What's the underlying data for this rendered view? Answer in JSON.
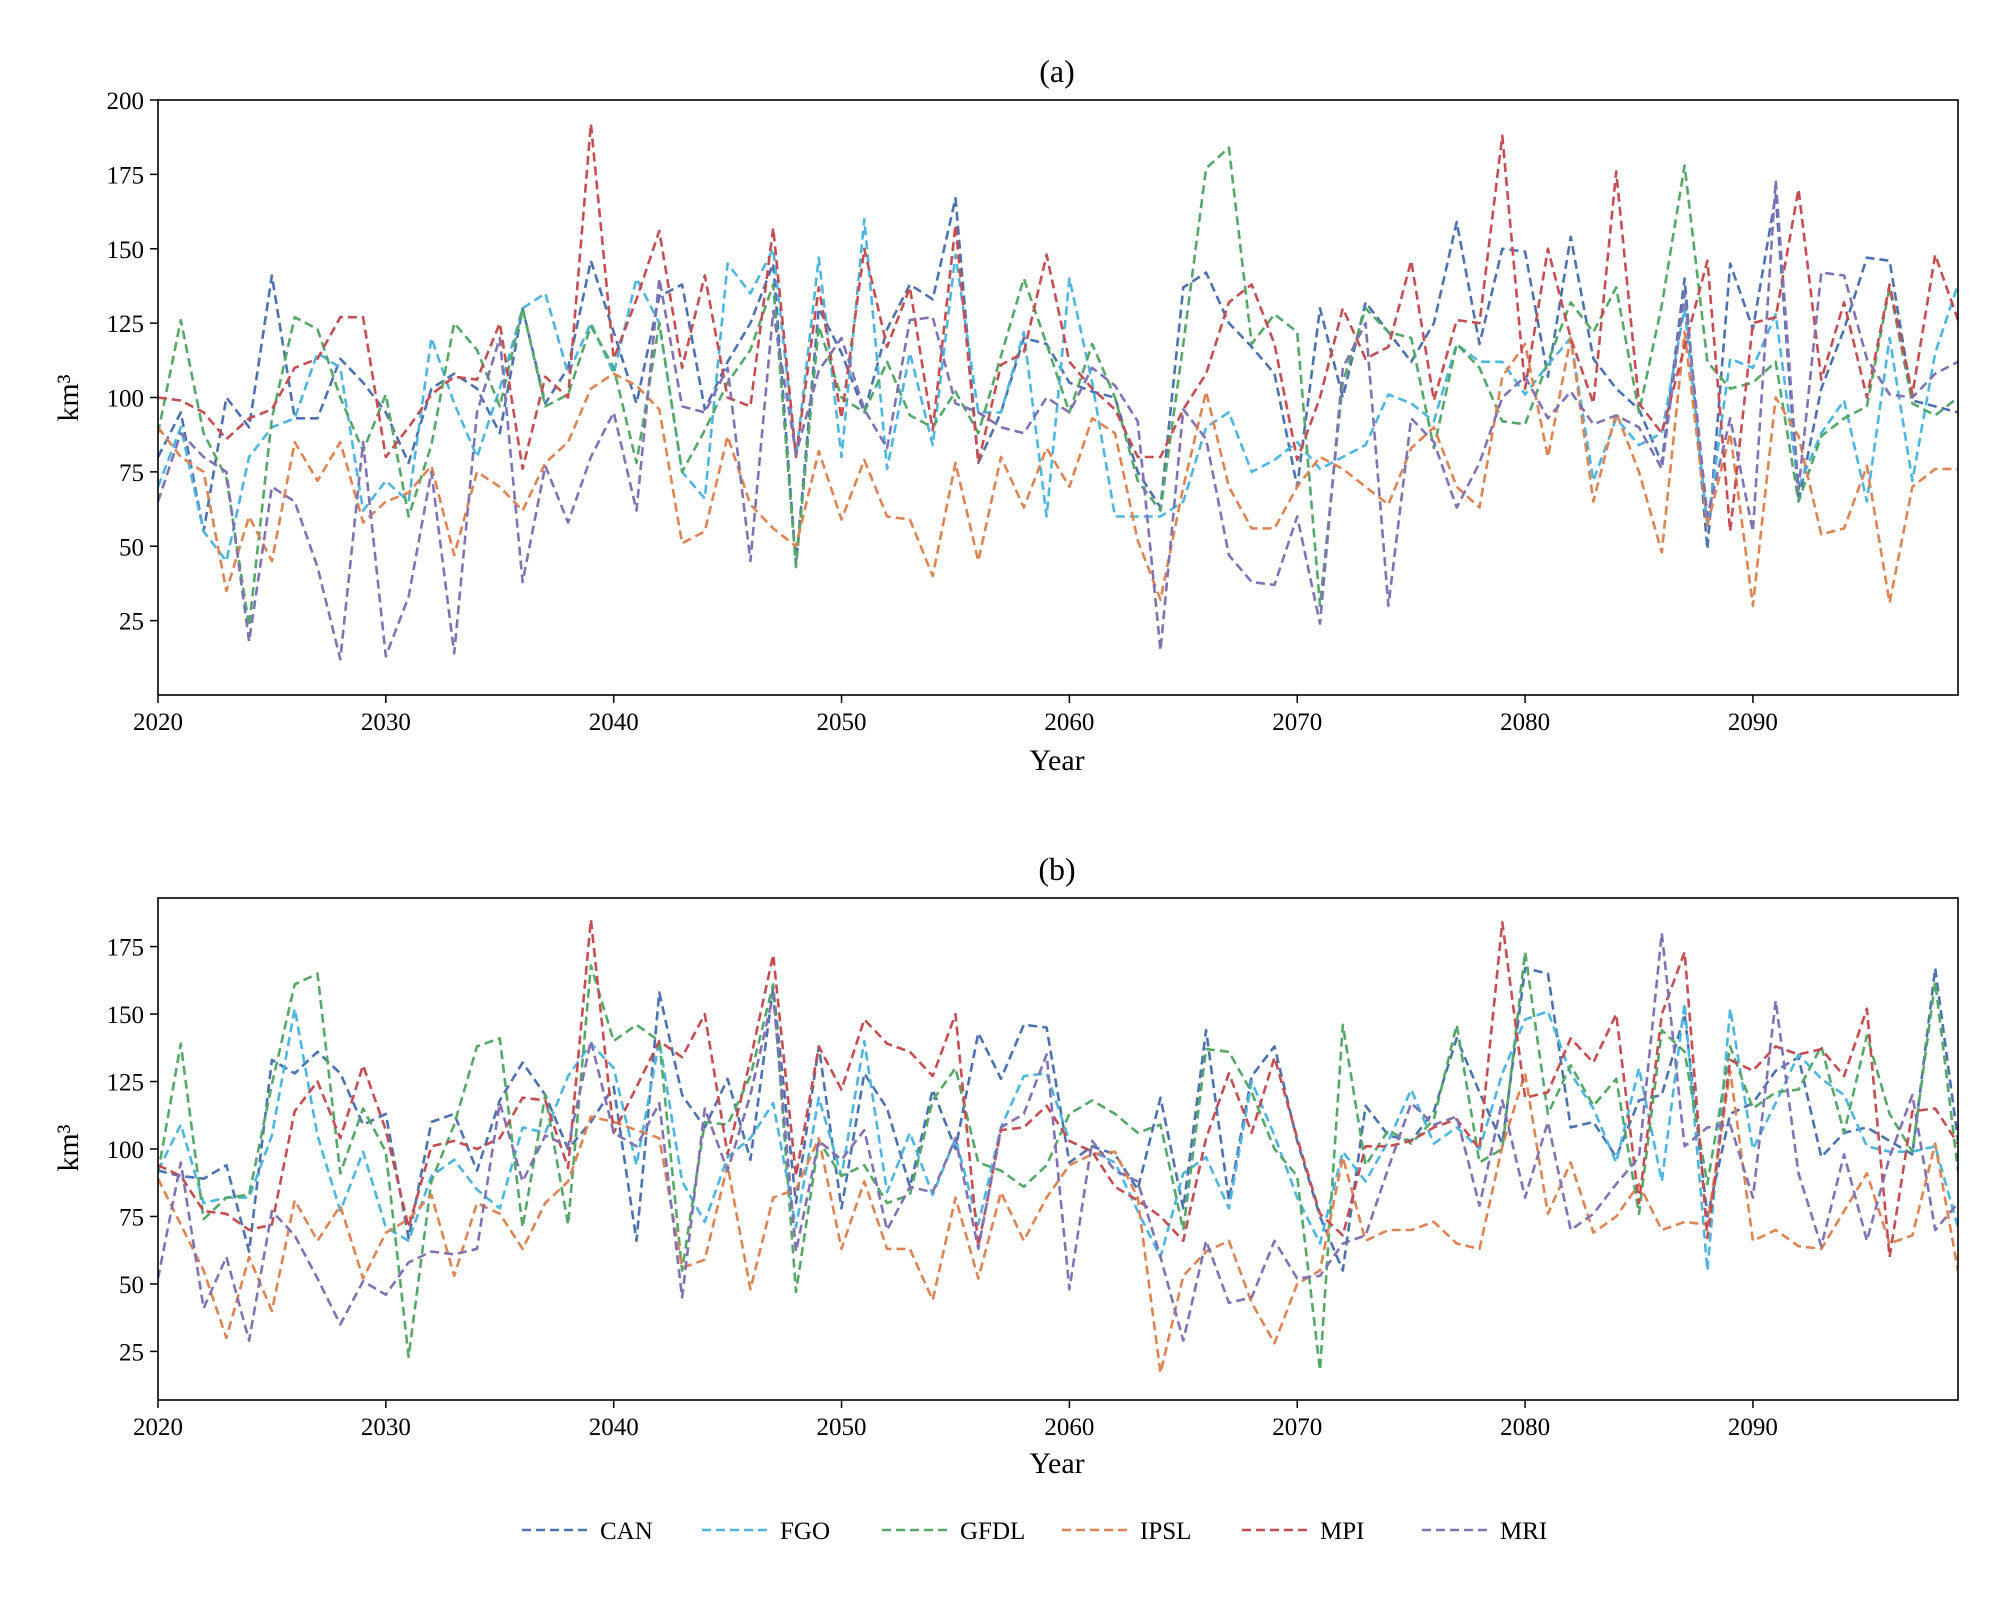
{
  "chart_data": [
    {
      "type": "line",
      "title": "(a)",
      "xlabel": "Year",
      "ylabel": "km³",
      "xlim": [
        2020,
        2099
      ],
      "ylim": [
        0,
        200
      ],
      "xticks": [
        2020,
        2030,
        2040,
        2050,
        2060,
        2070,
        2080,
        2090
      ],
      "yticks": [
        25,
        50,
        75,
        100,
        125,
        150,
        175,
        200
      ],
      "grid": false,
      "line_style": "dashed",
      "x_start": 2020,
      "series": [
        {
          "name": "CAN",
          "color": "#4c72b0",
          "values": [
            80,
            95,
            55,
            100,
            90,
            141,
            93,
            93,
            113,
            105,
            95,
            78,
            103,
            108,
            103,
            88,
            130,
            98,
            110,
            146,
            122,
            98,
            134,
            138,
            96,
            112,
            125,
            145,
            44,
            130,
            115,
            95,
            123,
            138,
            133,
            167,
            78,
            95,
            120,
            118,
            105,
            102,
            100,
            75,
            63,
            137,
            142,
            125,
            117,
            108,
            70,
            130,
            100,
            132,
            122,
            112,
            125,
            159,
            118,
            150,
            149,
            107,
            154,
            113,
            103,
            96,
            78,
            140,
            49,
            145,
            123,
            168,
            65,
            103,
            123,
            147,
            146,
            99,
            97,
            95
          ]
        },
        {
          "name": "FGO",
          "color": "#4db6e0",
          "values": [
            70,
            90,
            55,
            45,
            80,
            90,
            93,
            115,
            110,
            62,
            72,
            65,
            120,
            98,
            80,
            103,
            130,
            135,
            108,
            125,
            108,
            140,
            125,
            75,
            66,
            145,
            135,
            150,
            80,
            147,
            80,
            160,
            76,
            115,
            84,
            148,
            95,
            95,
            122,
            60,
            140,
            105,
            60,
            60,
            60,
            65,
            90,
            95,
            75,
            79,
            85,
            76,
            80,
            84,
            101,
            98,
            92,
            118,
            112,
            112,
            101,
            111,
            120,
            72,
            93,
            84,
            88,
            130,
            57,
            113,
            110,
            128,
            70,
            88,
            99,
            65,
            120,
            72,
            115,
            138
          ]
        },
        {
          "name": "GFDL",
          "color": "#55a868",
          "values": [
            88,
            126,
            88,
            73,
            23,
            93,
            127,
            123,
            100,
            82,
            101,
            60,
            84,
            125,
            116,
            97,
            130,
            97,
            101,
            124,
            110,
            78,
            125,
            75,
            89,
            105,
            116,
            138,
            43,
            124,
            100,
            95,
            112,
            94,
            90,
            102,
            88,
            114,
            140,
            118,
            95,
            118,
            100,
            72,
            62,
            118,
            177,
            184,
            118,
            128,
            122,
            30,
            105,
            130,
            122,
            120,
            83,
            118,
            110,
            92,
            91,
            112,
            132,
            122,
            137,
            95,
            131,
            178,
            112,
            103,
            105,
            112,
            65,
            87,
            93,
            97,
            137,
            98,
            94,
            100
          ]
        },
        {
          "name": "IPSL",
          "color": "#dd8452",
          "values": [
            90,
            80,
            75,
            35,
            60,
            45,
            85,
            72,
            85,
            58,
            65,
            68,
            77,
            47,
            75,
            70,
            62,
            78,
            85,
            103,
            108,
            104,
            96,
            51,
            55,
            87,
            64,
            56,
            50,
            82,
            59,
            79,
            60,
            59,
            40,
            78,
            45,
            80,
            63,
            83,
            70,
            93,
            88,
            52,
            32,
            70,
            102,
            70,
            56,
            56,
            70,
            80,
            76,
            70,
            64,
            83,
            90,
            70,
            63,
            107,
            118,
            80,
            120,
            65,
            95,
            75,
            48,
            122,
            57,
            88,
            30,
            100,
            87,
            54,
            56,
            77,
            31,
            70,
            76,
            76
          ]
        },
        {
          "name": "MPI",
          "color": "#c44e52",
          "values": [
            100,
            99,
            95,
            86,
            93,
            96,
            110,
            113,
            127,
            127,
            80,
            90,
            101,
            107,
            106,
            125,
            76,
            107,
            100,
            192,
            113,
            133,
            156,
            110,
            141,
            100,
            97,
            157,
            80,
            137,
            93,
            150,
            117,
            137,
            89,
            158,
            78,
            111,
            115,
            148,
            112,
            103,
            96,
            80,
            80,
            96,
            108,
            132,
            138,
            118,
            79,
            100,
            130,
            113,
            117,
            146,
            99,
            126,
            125,
            188,
            103,
            150,
            120,
            98,
            176,
            98,
            88,
            117,
            146,
            55,
            125,
            127,
            170,
            106,
            132,
            100,
            138,
            101,
            148,
            126
          ]
        },
        {
          "name": "MRI",
          "color": "#8172b3",
          "values": [
            65,
            88,
            80,
            75,
            18,
            70,
            65,
            43,
            12,
            85,
            13,
            33,
            75,
            14,
            95,
            120,
            38,
            77,
            58,
            80,
            95,
            62,
            140,
            97,
            95,
            110,
            45,
            129,
            81,
            109,
            120,
            96,
            83,
            126,
            127,
            98,
            95,
            90,
            88,
            100,
            95,
            110,
            104,
            92,
            15,
            96,
            86,
            47,
            38,
            37,
            60,
            24,
            110,
            125,
            30,
            93,
            85,
            63,
            78,
            100,
            107,
            93,
            102,
            91,
            94,
            90,
            76,
            135,
            60,
            93,
            55,
            173,
            69,
            142,
            141,
            113,
            101,
            100,
            108,
            112
          ]
        }
      ]
    },
    {
      "type": "line",
      "title": "(b)",
      "xlabel": "Year",
      "ylabel": "km³",
      "xlim": [
        2020,
        2099
      ],
      "ylim": [
        7,
        193
      ],
      "xticks": [
        2020,
        2030,
        2040,
        2050,
        2060,
        2070,
        2080,
        2090
      ],
      "yticks": [
        25,
        50,
        75,
        100,
        125,
        150,
        175
      ],
      "grid": false,
      "line_style": "dashed",
      "x_start": 2020,
      "series": [
        {
          "name": "CAN",
          "color": "#4c72b0",
          "values": [
            92,
            90,
            89,
            94,
            62,
            133,
            128,
            136,
            128,
            109,
            113,
            67,
            110,
            113,
            92,
            118,
            132,
            120,
            100,
            110,
            123,
            66,
            158,
            120,
            108,
            126,
            96,
            160,
            80,
            138,
            78,
            128,
            115,
            86,
            122,
            100,
            143,
            126,
            146,
            145,
            95,
            101,
            98,
            85,
            119,
            78,
            144,
            81,
            127,
            138,
            103,
            75,
            55,
            116,
            105,
            103,
            114,
            141,
            121,
            102,
            167,
            165,
            108,
            110,
            97,
            118,
            120,
            150,
            75,
            113,
            117,
            129,
            134,
            97,
            106,
            108,
            103,
            98,
            167,
            103
          ]
        },
        {
          "name": "FGO",
          "color": "#4db6e0",
          "values": [
            92,
            109,
            80,
            82,
            82,
            105,
            152,
            105,
            77,
            99,
            71,
            66,
            90,
            96,
            85,
            78,
            108,
            106,
            127,
            139,
            130,
            94,
            140,
            88,
            73,
            97,
            104,
            117,
            71,
            119,
            90,
            140,
            84,
            106,
            83,
            104,
            72,
            108,
            127,
            128,
            103,
            99,
            95,
            77,
            60,
            91,
            97,
            78,
            125,
            105,
            82,
            65,
            99,
            88,
            103,
            122,
            102,
            108,
            100,
            128,
            148,
            151,
            128,
            115,
            95,
            130,
            88,
            154,
            55,
            152,
            100,
            117,
            135,
            126,
            120,
            101,
            99,
            99,
            101,
            71
          ]
        },
        {
          "name": "GFDL",
          "color": "#55a868",
          "values": [
            91,
            139,
            74,
            82,
            83,
            124,
            161,
            165,
            91,
            115,
            99,
            23,
            88,
            109,
            138,
            141,
            71,
            120,
            72,
            168,
            140,
            146,
            140,
            55,
            110,
            109,
            127,
            161,
            47,
            103,
            90,
            94,
            80,
            83,
            118,
            130,
            95,
            92,
            86,
            94,
            113,
            118,
            113,
            106,
            109,
            70,
            137,
            136,
            121,
            100,
            90,
            18,
            146,
            94,
            107,
            102,
            111,
            146,
            95,
            100,
            173,
            113,
            131,
            116,
            126,
            76,
            144,
            136,
            87,
            138,
            115,
            121,
            122,
            138,
            106,
            142,
            113,
            99,
            162,
            92
          ]
        },
        {
          "name": "IPSL",
          "color": "#dd8452",
          "values": [
            89,
            72,
            55,
            30,
            60,
            40,
            81,
            66,
            79,
            52,
            69,
            74,
            83,
            53,
            80,
            76,
            63,
            80,
            88,
            112,
            110,
            107,
            104,
            56,
            59,
            94,
            48,
            82,
            85,
            104,
            63,
            88,
            63,
            63,
            44,
            82,
            52,
            84,
            66,
            82,
            94,
            98,
            99,
            82,
            17,
            53,
            62,
            66,
            43,
            28,
            50,
            55,
            97,
            66,
            70,
            70,
            73,
            65,
            63,
            101,
            128,
            76,
            95,
            69,
            75,
            87,
            70,
            73,
            72,
            129,
            66,
            70,
            64,
            63,
            77,
            91,
            65,
            68,
            102,
            55
          ]
        },
        {
          "name": "MPI",
          "color": "#c44e52",
          "values": [
            94,
            90,
            77,
            76,
            70,
            72,
            114,
            125,
            104,
            131,
            107,
            71,
            101,
            103,
            100,
            104,
            119,
            118,
            93,
            185,
            106,
            123,
            140,
            134,
            150,
            98,
            133,
            172,
            90,
            138,
            122,
            148,
            139,
            136,
            127,
            150,
            64,
            107,
            108,
            116,
            103,
            99,
            86,
            81,
            75,
            66,
            104,
            128,
            106,
            134,
            104,
            76,
            68,
            101,
            101,
            103,
            108,
            111,
            100,
            184,
            119,
            121,
            141,
            132,
            150,
            80,
            150,
            173,
            67,
            133,
            129,
            138,
            135,
            137,
            127,
            152,
            60,
            114,
            115,
            102
          ]
        },
        {
          "name": "MRI",
          "color": "#8172b3",
          "values": [
            52,
            95,
            41,
            60,
            29,
            77,
            68,
            52,
            35,
            51,
            46,
            58,
            62,
            61,
            63,
            117,
            88,
            105,
            101,
            140,
            106,
            101,
            117,
            45,
            115,
            92,
            120,
            157,
            62,
            103,
            96,
            107,
            70,
            86,
            84,
            104,
            63,
            108,
            113,
            135,
            48,
            103,
            92,
            88,
            60,
            29,
            66,
            43,
            45,
            66,
            52,
            53,
            65,
            68,
            93,
            117,
            109,
            112,
            79,
            118,
            82,
            110,
            70,
            76,
            87,
            97,
            180,
            101,
            108,
            109,
            82,
            155,
            91,
            64,
            98,
            66,
            97,
            120,
            70,
            80
          ]
        }
      ]
    }
  ]
}
